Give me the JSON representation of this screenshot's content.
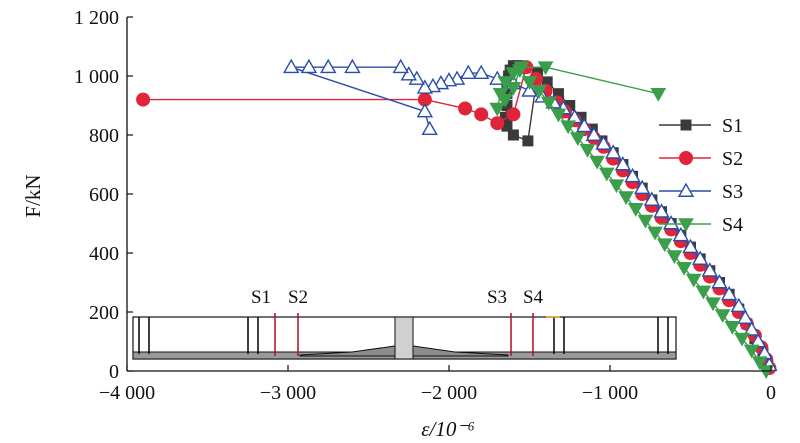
{
  "chart_data": {
    "type": "line",
    "xlabel": "ε/10⁻⁶",
    "ylabel": "F/kN",
    "xlim": [
      -4000,
      0
    ],
    "ylim": [
      0,
      1200
    ],
    "x_ticks": [
      -4000,
      -3000,
      -2000,
      -1000,
      0
    ],
    "x_tick_labels": [
      "−4 000",
      "−3 000",
      "−2 000",
      "−1 000",
      "0"
    ],
    "y_ticks": [
      0,
      200,
      400,
      600,
      800,
      1000,
      1200
    ],
    "y_tick_labels": [
      "0",
      "200",
      "400",
      "600",
      "800",
      "1 000",
      "1 200"
    ],
    "grid": false,
    "legend_position": "right",
    "series": [
      {
        "name": "S1",
        "color": "#3a3a3a",
        "marker": "square",
        "points": [
          [
            -20,
            20
          ],
          [
            -50,
            60
          ],
          [
            -100,
            110
          ],
          [
            -150,
            160
          ],
          [
            -200,
            210
          ],
          [
            -260,
            260
          ],
          [
            -320,
            300
          ],
          [
            -380,
            340
          ],
          [
            -440,
            380
          ],
          [
            -500,
            420
          ],
          [
            -560,
            460
          ],
          [
            -620,
            500
          ],
          [
            -680,
            540
          ],
          [
            -740,
            580
          ],
          [
            -800,
            620
          ],
          [
            -860,
            660
          ],
          [
            -920,
            700
          ],
          [
            -980,
            740
          ],
          [
            -1050,
            780
          ],
          [
            -1110,
            820
          ],
          [
            -1180,
            860
          ],
          [
            -1250,
            900
          ],
          [
            -1320,
            940
          ],
          [
            -1390,
            980
          ],
          [
            -1450,
            1010
          ],
          [
            -1510,
            780
          ],
          [
            -1600,
            800
          ],
          [
            -1640,
            830
          ],
          [
            -1650,
            860
          ],
          [
            -1640,
            900
          ],
          [
            -1640,
            940
          ],
          [
            -1640,
            970
          ],
          [
            -1630,
            1000
          ],
          [
            -1620,
            1020
          ],
          [
            -1600,
            1035
          ],
          [
            -1570,
            1035
          ],
          [
            -1540,
            1030
          ]
        ]
      },
      {
        "name": "S2",
        "color": "#e0243a",
        "marker": "circle",
        "points": [
          [
            -10,
            10
          ],
          [
            -30,
            40
          ],
          [
            -60,
            80
          ],
          [
            -100,
            120
          ],
          [
            -150,
            160
          ],
          [
            -200,
            200
          ],
          [
            -260,
            240
          ],
          [
            -320,
            280
          ],
          [
            -380,
            320
          ],
          [
            -440,
            360
          ],
          [
            -500,
            400
          ],
          [
            -560,
            440
          ],
          [
            -620,
            480
          ],
          [
            -680,
            520
          ],
          [
            -740,
            560
          ],
          [
            -800,
            600
          ],
          [
            -860,
            640
          ],
          [
            -920,
            680
          ],
          [
            -980,
            720
          ],
          [
            -1040,
            760
          ],
          [
            -1100,
            790
          ],
          [
            -1160,
            820
          ],
          [
            -1220,
            850
          ],
          [
            -1280,
            880
          ],
          [
            -1330,
            910
          ],
          [
            -1400,
            950
          ],
          [
            -1460,
            990
          ],
          [
            -1520,
            1030
          ],
          [
            -1600,
            870
          ],
          [
            -1700,
            840
          ],
          [
            -1800,
            870
          ],
          [
            -1900,
            890
          ],
          [
            -2150,
            920
          ],
          [
            -3900,
            920
          ]
        ]
      },
      {
        "name": "S3",
        "color": "#2a4ea8",
        "marker": "triangle-up",
        "points": [
          [
            -10,
            20
          ],
          [
            -40,
            60
          ],
          [
            -80,
            100
          ],
          [
            -120,
            140
          ],
          [
            -160,
            180
          ],
          [
            -200,
            220
          ],
          [
            -260,
            260
          ],
          [
            -320,
            300
          ],
          [
            -380,
            340
          ],
          [
            -440,
            380
          ],
          [
            -500,
            420
          ],
          [
            -560,
            460
          ],
          [
            -620,
            500
          ],
          [
            -680,
            540
          ],
          [
            -740,
            580
          ],
          [
            -800,
            620
          ],
          [
            -860,
            660
          ],
          [
            -920,
            700
          ],
          [
            -980,
            740
          ],
          [
            -1040,
            770
          ],
          [
            -1100,
            800
          ],
          [
            -1160,
            830
          ],
          [
            -1220,
            860
          ],
          [
            -1290,
            890
          ],
          [
            -1350,
            910
          ],
          [
            -1420,
            930
          ],
          [
            -1500,
            950
          ],
          [
            -1600,
            975
          ],
          [
            -1700,
            990
          ],
          [
            -1800,
            1010
          ],
          [
            -1880,
            1010
          ],
          [
            -1950,
            990
          ],
          [
            -2000,
            985
          ],
          [
            -2050,
            975
          ],
          [
            -2100,
            965
          ],
          [
            -2150,
            960
          ],
          [
            -2200,
            990
          ],
          [
            -2250,
            1005
          ],
          [
            -2300,
            1030
          ],
          [
            -2600,
            1030
          ],
          [
            -2750,
            1030
          ],
          [
            -2870,
            1030
          ],
          [
            -2980,
            1030
          ],
          [
            -2150,
            880
          ],
          [
            -2120,
            820
          ]
        ]
      },
      {
        "name": "S4",
        "color": "#3a9e4a",
        "marker": "triangle-down",
        "points": [
          [
            -30,
            0
          ],
          [
            -70,
            30
          ],
          [
            -120,
            70
          ],
          [
            -180,
            110
          ],
          [
            -240,
            150
          ],
          [
            -300,
            190
          ],
          [
            -360,
            230
          ],
          [
            -420,
            270
          ],
          [
            -480,
            310
          ],
          [
            -540,
            350
          ],
          [
            -600,
            390
          ],
          [
            -660,
            430
          ],
          [
            -720,
            470
          ],
          [
            -780,
            510
          ],
          [
            -840,
            550
          ],
          [
            -900,
            590
          ],
          [
            -960,
            630
          ],
          [
            -1020,
            670
          ],
          [
            -1080,
            710
          ],
          [
            -1140,
            750
          ],
          [
            -1200,
            790
          ],
          [
            -1260,
            830
          ],
          [
            -1320,
            870
          ],
          [
            -1380,
            910
          ],
          [
            -1440,
            950
          ],
          [
            -1500,
            980
          ],
          [
            -1560,
            1020
          ],
          [
            -1600,
            960
          ],
          [
            -1650,
            920
          ],
          [
            -1700,
            890
          ],
          [
            -1680,
            940
          ],
          [
            -1650,
            980
          ],
          [
            -1600,
            1010
          ],
          [
            -1550,
            1030
          ],
          [
            -1400,
            1030
          ],
          [
            -700,
            940
          ]
        ]
      }
    ],
    "inset": {
      "labels": [
        "S1",
        "S2",
        "S3",
        "S4"
      ]
    }
  }
}
